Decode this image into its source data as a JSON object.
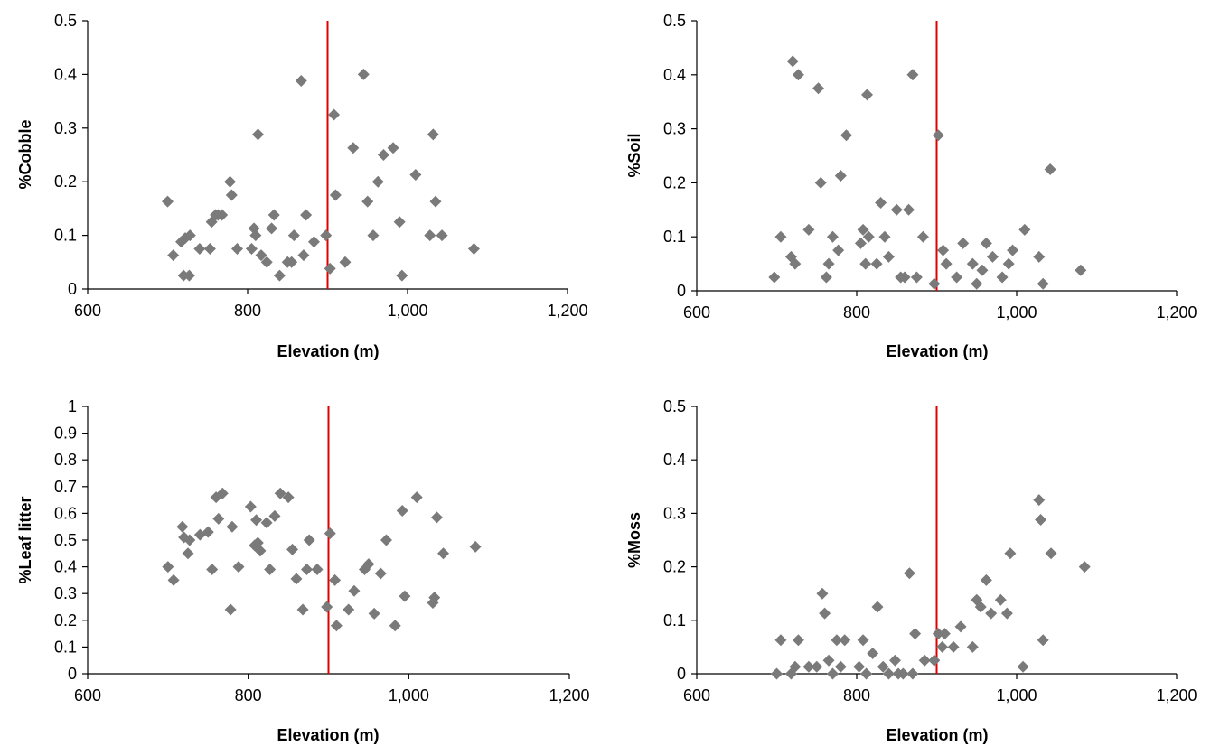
{
  "chart_data": [
    {
      "type": "scatter",
      "ylabel": "%Cobble",
      "xlabel": "Elevation (m)",
      "xlim": [
        600,
        1200
      ],
      "ylim": [
        0,
        0.5
      ],
      "xticks": [
        600,
        800,
        1000,
        1200
      ],
      "xtick_labels": [
        "600",
        "800",
        "1,000",
        "1,200"
      ],
      "yticks": [
        0,
        0.1,
        0.2,
        0.3,
        0.4,
        0.5
      ],
      "ytick_labels": [
        "0",
        "0.1",
        "0.2",
        "0.3",
        "0.4",
        "0.5"
      ],
      "reference_x": 900,
      "marker_color": "#7a7a7a",
      "reference_color": "#e00000",
      "points": [
        [
          700,
          0.163
        ],
        [
          707,
          0.063
        ],
        [
          717,
          0.088
        ],
        [
          720,
          0.025
        ],
        [
          722,
          0.095
        ],
        [
          727,
          0.025
        ],
        [
          728,
          0.1
        ],
        [
          740,
          0.075
        ],
        [
          753,
          0.075
        ],
        [
          755,
          0.125
        ],
        [
          760,
          0.138
        ],
        [
          763,
          0.138
        ],
        [
          768,
          0.138
        ],
        [
          778,
          0.2
        ],
        [
          780,
          0.175
        ],
        [
          787,
          0.075
        ],
        [
          805,
          0.075
        ],
        [
          808,
          0.113
        ],
        [
          810,
          0.1
        ],
        [
          813,
          0.288
        ],
        [
          817,
          0.063
        ],
        [
          824,
          0.05
        ],
        [
          830,
          0.113
        ],
        [
          833,
          0.138
        ],
        [
          840,
          0.025
        ],
        [
          850,
          0.05
        ],
        [
          855,
          0.05
        ],
        [
          858,
          0.1
        ],
        [
          867,
          0.388
        ],
        [
          870,
          0.063
        ],
        [
          873,
          0.138
        ],
        [
          883,
          0.088
        ],
        [
          898,
          0.1
        ],
        [
          903,
          0.038
        ],
        [
          908,
          0.325
        ],
        [
          910,
          0.175
        ],
        [
          922,
          0.05
        ],
        [
          932,
          0.263
        ],
        [
          945,
          0.4
        ],
        [
          950,
          0.163
        ],
        [
          957,
          0.1
        ],
        [
          963,
          0.2
        ],
        [
          970,
          0.25
        ],
        [
          982,
          0.263
        ],
        [
          990,
          0.125
        ],
        [
          993,
          0.025
        ],
        [
          1010,
          0.213
        ],
        [
          1028,
          0.1
        ],
        [
          1032,
          0.288
        ],
        [
          1035,
          0.163
        ],
        [
          1043,
          0.1
        ],
        [
          1083,
          0.075
        ]
      ]
    },
    {
      "type": "scatter",
      "ylabel": "%Soil",
      "xlabel": "Elevation (m)",
      "xlim": [
        600,
        1200
      ],
      "ylim": [
        0,
        0.5
      ],
      "xticks": [
        600,
        800,
        1000,
        1200
      ],
      "xtick_labels": [
        "600",
        "800",
        "1,000",
        "1,200"
      ],
      "yticks": [
        0,
        0.1,
        0.2,
        0.3,
        0.4,
        0.5
      ],
      "ytick_labels": [
        "0",
        "0.1",
        "0.2",
        "0.3",
        "0.4",
        "0.5"
      ],
      "reference_x": 900,
      "marker_color": "#7a7a7a",
      "reference_color": "#e00000",
      "points": [
        [
          697,
          0.025
        ],
        [
          705,
          0.1
        ],
        [
          718,
          0.063
        ],
        [
          720,
          0.425
        ],
        [
          723,
          0.05
        ],
        [
          727,
          0.4
        ],
        [
          740,
          0.113
        ],
        [
          752,
          0.375
        ],
        [
          755,
          0.2
        ],
        [
          762,
          0.025
        ],
        [
          765,
          0.05
        ],
        [
          770,
          0.1
        ],
        [
          777,
          0.075
        ],
        [
          780,
          0.213
        ],
        [
          787,
          0.288
        ],
        [
          805,
          0.088
        ],
        [
          808,
          0.113
        ],
        [
          811,
          0.05
        ],
        [
          813,
          0.363
        ],
        [
          815,
          0.1
        ],
        [
          825,
          0.05
        ],
        [
          830,
          0.163
        ],
        [
          835,
          0.1
        ],
        [
          840,
          0.063
        ],
        [
          850,
          0.15
        ],
        [
          855,
          0.025
        ],
        [
          860,
          0.025
        ],
        [
          865,
          0.15
        ],
        [
          870,
          0.4
        ],
        [
          875,
          0.025
        ],
        [
          883,
          0.1
        ],
        [
          897,
          0.013
        ],
        [
          902,
          0.288
        ],
        [
          908,
          0.075
        ],
        [
          912,
          0.05
        ],
        [
          925,
          0.025
        ],
        [
          933,
          0.088
        ],
        [
          945,
          0.05
        ],
        [
          950,
          0.013
        ],
        [
          957,
          0.038
        ],
        [
          962,
          0.088
        ],
        [
          970,
          0.063
        ],
        [
          982,
          0.025
        ],
        [
          990,
          0.05
        ],
        [
          995,
          0.075
        ],
        [
          1010,
          0.113
        ],
        [
          1028,
          0.063
        ],
        [
          1033,
          0.013
        ],
        [
          1042,
          0.225
        ],
        [
          1080,
          0.038
        ]
      ]
    },
    {
      "type": "scatter",
      "ylabel": "%Leaf litter",
      "xlabel": "Elevation (m)",
      "xlim": [
        600,
        1200
      ],
      "ylim": [
        0,
        1
      ],
      "xticks": [
        600,
        800,
        1000,
        1200
      ],
      "xtick_labels": [
        "600",
        "800",
        "1,000",
        "1,200"
      ],
      "yticks": [
        0,
        0.1,
        0.2,
        0.3,
        0.4,
        0.5,
        0.6,
        0.7,
        0.8,
        0.9,
        1
      ],
      "ytick_labels": [
        "0",
        "0.1",
        "0.2",
        "0.3",
        "0.4",
        "0.5",
        "0.6",
        "0.7",
        "0.8",
        "0.9",
        "1"
      ],
      "reference_x": 900,
      "marker_color": "#7a7a7a",
      "reference_color": "#e00000",
      "points": [
        [
          700,
          0.4
        ],
        [
          707,
          0.35
        ],
        [
          718,
          0.55
        ],
        [
          720,
          0.51
        ],
        [
          725,
          0.45
        ],
        [
          727,
          0.5
        ],
        [
          740,
          0.52
        ],
        [
          750,
          0.53
        ],
        [
          755,
          0.39
        ],
        [
          760,
          0.66
        ],
        [
          763,
          0.58
        ],
        [
          768,
          0.675
        ],
        [
          778,
          0.24
        ],
        [
          780,
          0.55
        ],
        [
          788,
          0.4
        ],
        [
          803,
          0.625
        ],
        [
          808,
          0.48
        ],
        [
          810,
          0.575
        ],
        [
          812,
          0.49
        ],
        [
          815,
          0.46
        ],
        [
          823,
          0.565
        ],
        [
          827,
          0.39
        ],
        [
          833,
          0.59
        ],
        [
          840,
          0.675
        ],
        [
          850,
          0.66
        ],
        [
          855,
          0.465
        ],
        [
          860,
          0.355
        ],
        [
          868,
          0.24
        ],
        [
          873,
          0.39
        ],
        [
          876,
          0.5
        ],
        [
          886,
          0.39
        ],
        [
          898,
          0.25
        ],
        [
          902,
          0.525
        ],
        [
          908,
          0.35
        ],
        [
          910,
          0.18
        ],
        [
          925,
          0.24
        ],
        [
          932,
          0.31
        ],
        [
          945,
          0.39
        ],
        [
          950,
          0.41
        ],
        [
          957,
          0.225
        ],
        [
          965,
          0.375
        ],
        [
          972,
          0.5
        ],
        [
          983,
          0.18
        ],
        [
          992,
          0.61
        ],
        [
          995,
          0.29
        ],
        [
          1010,
          0.66
        ],
        [
          1030,
          0.265
        ],
        [
          1032,
          0.285
        ],
        [
          1035,
          0.585
        ],
        [
          1043,
          0.45
        ],
        [
          1083,
          0.475
        ]
      ]
    },
    {
      "type": "scatter",
      "ylabel": "%Moss",
      "xlabel": "Elevation (m)",
      "xlim": [
        600,
        1200
      ],
      "ylim": [
        0,
        0.5
      ],
      "xticks": [
        600,
        800,
        1000,
        1200
      ],
      "xtick_labels": [
        "600",
        "800",
        "1,000",
        "1,200"
      ],
      "yticks": [
        0,
        0.1,
        0.2,
        0.3,
        0.4,
        0.5
      ],
      "ytick_labels": [
        "0",
        "0.1",
        "0.2",
        "0.3",
        "0.4",
        "0.5"
      ],
      "reference_x": 900,
      "marker_color": "#7a7a7a",
      "reference_color": "#e00000",
      "points": [
        [
          700,
          0
        ],
        [
          705,
          0.063
        ],
        [
          718,
          0
        ],
        [
          723,
          0.013
        ],
        [
          727,
          0.063
        ],
        [
          740,
          0.013
        ],
        [
          750,
          0.013
        ],
        [
          757,
          0.15
        ],
        [
          760,
          0.113
        ],
        [
          765,
          0.025
        ],
        [
          770,
          0
        ],
        [
          775,
          0.063
        ],
        [
          780,
          0.013
        ],
        [
          785,
          0.063
        ],
        [
          803,
          0.013
        ],
        [
          808,
          0.063
        ],
        [
          812,
          0
        ],
        [
          820,
          0.038
        ],
        [
          826,
          0.125
        ],
        [
          833,
          0.013
        ],
        [
          840,
          0
        ],
        [
          848,
          0.025
        ],
        [
          852,
          0
        ],
        [
          858,
          0
        ],
        [
          866,
          0.188
        ],
        [
          870,
          0
        ],
        [
          873,
          0.075
        ],
        [
          885,
          0.025
        ],
        [
          897,
          0.025
        ],
        [
          902,
          0.075
        ],
        [
          907,
          0.05
        ],
        [
          910,
          0.075
        ],
        [
          921,
          0.05
        ],
        [
          930,
          0.088
        ],
        [
          945,
          0.05
        ],
        [
          950,
          0.138
        ],
        [
          955,
          0.125
        ],
        [
          962,
          0.175
        ],
        [
          968,
          0.113
        ],
        [
          980,
          0.138
        ],
        [
          988,
          0.113
        ],
        [
          992,
          0.225
        ],
        [
          1008,
          0.013
        ],
        [
          1028,
          0.325
        ],
        [
          1030,
          0.288
        ],
        [
          1033,
          0.063
        ],
        [
          1043,
          0.225
        ],
        [
          1085,
          0.2
        ]
      ]
    }
  ]
}
